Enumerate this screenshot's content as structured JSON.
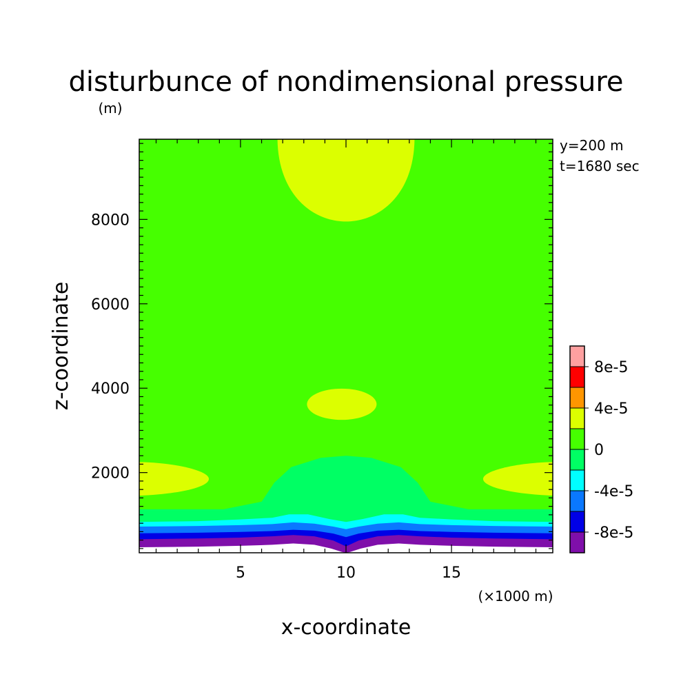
{
  "chart_data": {
    "type": "heatmap",
    "subtype": "filled-contour",
    "title": "disturbunce of nondimensional pressure",
    "ylabel_unit": "(m)",
    "xlabel": "x-coordinate",
    "ylabel": "z-coordinate",
    "x_unit": "(×1000 m)",
    "xlim": [
      0.2,
      19.8
    ],
    "ylim": [
      100,
      9900
    ],
    "x_ticks": [
      5,
      10,
      15
    ],
    "y_ticks": [
      2000,
      4000,
      6000,
      8000
    ],
    "annotations": [
      "y=200 m",
      "t=1680 sec"
    ],
    "colorbar": {
      "levels": [
        -0.0001,
        -8e-05,
        -6e-05,
        -4e-05,
        -2e-05,
        0,
        2e-05,
        4e-05,
        6e-05,
        8e-05,
        0.0001
      ],
      "colors": [
        "#7f0faa",
        "#0000e6",
        "#0a78ff",
        "#00ffff",
        "#00ff64",
        "#46ff00",
        "#dcff00",
        "#ff9600",
        "#ff0000",
        "#ffa0a0"
      ],
      "labels": [
        "-8e-5",
        "-4e-5",
        "0",
        "4e-5",
        "8e-5"
      ],
      "label_values": [
        -8e-05,
        -4e-05,
        0,
        4e-05,
        8e-05
      ]
    },
    "background_value_range": [
      0,
      2e-05
    ],
    "regions": [
      {
        "name": "upper-positive-lobe",
        "range": [
          2e-05,
          4e-05
        ],
        "x_range": [
          6.8,
          13.4
        ],
        "z_range": [
          7950,
          9900
        ]
      },
      {
        "name": "middle-positive-blob",
        "range": [
          2e-05,
          4e-05
        ],
        "x_range": [
          8.3,
          11.5
        ],
        "z_range": [
          3250,
          3980
        ]
      },
      {
        "name": "left-positive-lobe",
        "range": [
          2e-05,
          4e-05
        ],
        "x_range": [
          0.2,
          3.5
        ],
        "z_range": [
          1450,
          2250
        ]
      },
      {
        "name": "right-positive-lobe",
        "range": [
          2e-05,
          4e-05
        ],
        "x_range": [
          16.5,
          19.8
        ],
        "z_range": [
          1450,
          2250
        ]
      },
      {
        "name": "near-surface-dome",
        "range": [
          -2e-05,
          0
        ],
        "x_range": [
          0.2,
          19.8
        ],
        "z_range": [
          1000,
          2400
        ]
      },
      {
        "name": "surface-layers",
        "range": [
          -0.0001,
          -2e-05
        ],
        "x_range": [
          0.2,
          19.8
        ],
        "z_range": [
          100,
          1000
        ]
      }
    ]
  }
}
